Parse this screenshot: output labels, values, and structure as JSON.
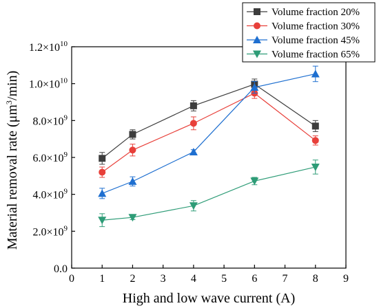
{
  "chart_data": {
    "type": "line",
    "xlabel": "High and low wave current (A)",
    "ylabel_parts": [
      "Material removal rate (μm",
      "3",
      "/min)"
    ],
    "xlim": [
      0,
      9
    ],
    "ylim": [
      0,
      12000000000
    ],
    "x_ticks": [
      0,
      1,
      2,
      3,
      4,
      5,
      6,
      7,
      8,
      9
    ],
    "x_tick_labels": [
      "0",
      "1",
      "2",
      "3",
      "4",
      "5",
      "6",
      "7",
      "8",
      "9"
    ],
    "y_ticks": [
      0,
      2000000000,
      4000000000,
      6000000000,
      8000000000,
      10000000000,
      12000000000
    ],
    "y_tick_labels": [
      {
        "base": "0.0",
        "exp": ""
      },
      {
        "base": "2.0×10",
        "exp": "9"
      },
      {
        "base": "4.0×10",
        "exp": "9"
      },
      {
        "base": "6.0×10",
        "exp": "9"
      },
      {
        "base": "8.0×10",
        "exp": "9"
      },
      {
        "base": "1.0×10",
        "exp": "10"
      },
      {
        "base": "1.2×10",
        "exp": "10"
      }
    ],
    "grid": false,
    "legend_position": "top-right",
    "series": [
      {
        "name": "Volume fraction 20%",
        "color": "#3d3d3d",
        "marker": "square",
        "x": [
          1,
          2,
          4,
          6,
          8
        ],
        "y": [
          5950000000,
          7250000000,
          8800000000,
          9970000000,
          7700000000
        ],
        "err": [
          320000000,
          250000000,
          280000000,
          280000000,
          300000000
        ]
      },
      {
        "name": "Volume fraction 30%",
        "color": "#e8403a",
        "marker": "circle",
        "x": [
          1,
          2,
          4,
          6,
          8
        ],
        "y": [
          5200000000,
          6400000000,
          7850000000,
          9480000000,
          6920000000
        ],
        "err": [
          280000000,
          320000000,
          350000000,
          280000000,
          250000000
        ]
      },
      {
        "name": "Volume fraction 45%",
        "color": "#1e6fd0",
        "marker": "triangle-up",
        "x": [
          1,
          2,
          4,
          6,
          8
        ],
        "y": [
          4050000000,
          4700000000,
          6300000000,
          9800000000,
          10530000000
        ],
        "err": [
          280000000,
          250000000,
          120000000,
          320000000,
          420000000
        ]
      },
      {
        "name": "Volume fraction 65%",
        "color": "#2e9c77",
        "marker": "triangle-down",
        "x": [
          1,
          2,
          4,
          6,
          8
        ],
        "y": [
          2600000000,
          2750000000,
          3380000000,
          4720000000,
          5480000000
        ],
        "err": [
          350000000,
          120000000,
          280000000,
          200000000,
          380000000
        ]
      }
    ]
  }
}
